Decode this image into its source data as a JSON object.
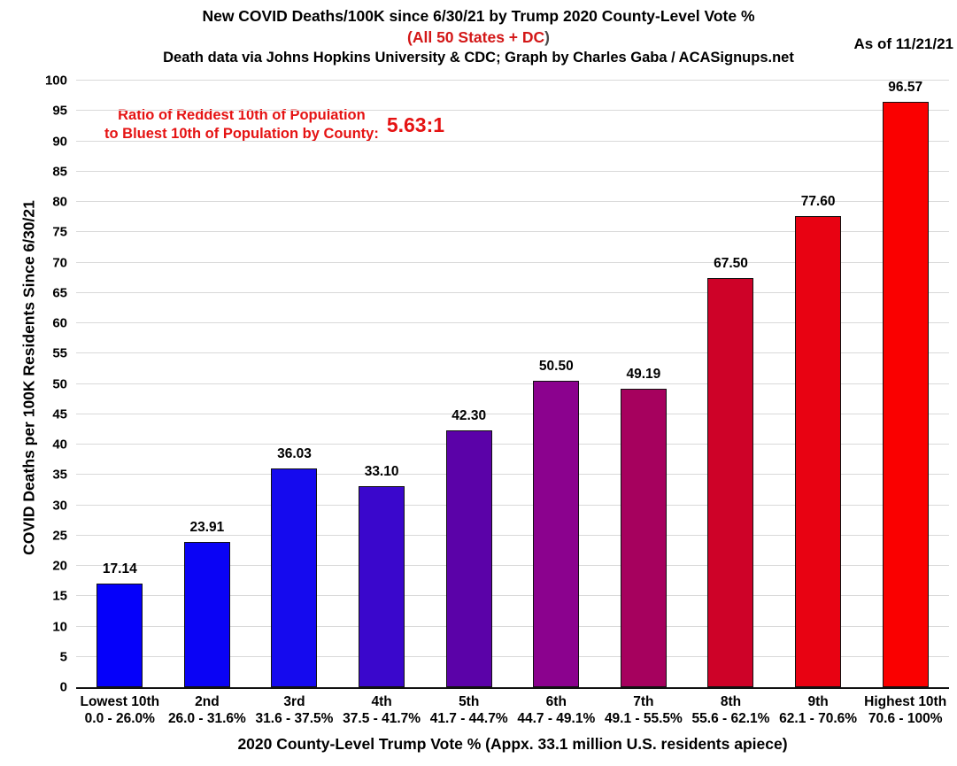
{
  "header": {
    "title": "New COVID Deaths/100K since 6/30/21 by Trump 2020 County-Level Vote %",
    "subtitle_red": "(All 50 States + DC",
    "subtitle_paren": ")",
    "credit": "Death data via Johns Hopkins University & CDC; Graph by Charles Gaba / ACASignups.net",
    "as_of": "As of 11/21/21"
  },
  "annotation": {
    "line1": "Ratio of Reddest 10th of Population",
    "line2": "to Bluest 10th of Population by County:",
    "value": "5.63:1",
    "color": "#e51313"
  },
  "chart_data": {
    "type": "bar",
    "title": "New COVID Deaths/100K since 6/30/21 by Trump 2020 County-Level Vote %",
    "xlabel": "2020 County-Level Trump Vote % (Appx. 33.1 million U.S. residents apiece)",
    "ylabel": "COVID Deaths per 100K Residents Since 6/30/21",
    "ylim": [
      0,
      100
    ],
    "ytick_step": 5,
    "grid": true,
    "legend": false,
    "categories": [
      {
        "tier": "Lowest 10th",
        "range": "0.0 - 26.0%"
      },
      {
        "tier": "2nd",
        "range": "26.0 - 31.6%"
      },
      {
        "tier": "3rd",
        "range": "31.6 - 37.5%"
      },
      {
        "tier": "4th",
        "range": "37.5 - 41.7%"
      },
      {
        "tier": "5th",
        "range": "41.7 - 44.7%"
      },
      {
        "tier": "6th",
        "range": "44.7 - 49.1%"
      },
      {
        "tier": "7th",
        "range": "49.1 - 55.5%"
      },
      {
        "tier": "8th",
        "range": "55.6 - 62.1%"
      },
      {
        "tier": "9th",
        "range": "62.1 - 70.6%"
      },
      {
        "tier": "Highest 10th",
        "range": "70.6 - 100%"
      }
    ],
    "values": [
      17.14,
      23.91,
      36.03,
      33.1,
      42.3,
      50.5,
      49.19,
      67.5,
      77.6,
      96.57
    ],
    "value_labels": [
      "17.14",
      "23.91",
      "36.03",
      "33.10",
      "42.30",
      "50.50",
      "49.19",
      "67.50",
      "77.60",
      "96.57"
    ],
    "bar_colors": [
      "#0500fa",
      "#0a03f5",
      "#150aee",
      "#3a07cc",
      "#5b02a8",
      "#8b028e",
      "#a6015e",
      "#ce0228",
      "#e80212",
      "#fa0000"
    ]
  }
}
